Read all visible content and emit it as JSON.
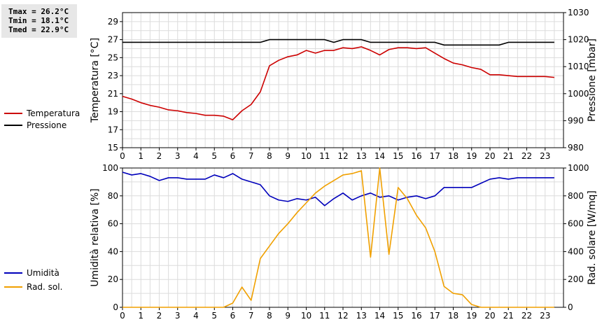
{
  "stats": {
    "tmax": "Tmax = 26.2°C",
    "tmin": "Tmin = 18.1°C",
    "tmed": "Tmed = 22.9°C"
  },
  "chart_data": [
    {
      "type": "line",
      "name": "temperature-pressure",
      "ylabel": "Temperatura [°C]",
      "y2label": "Pressione [mbar]",
      "xlim": [
        0,
        24
      ],
      "xticks": [
        0,
        1,
        2,
        3,
        4,
        5,
        6,
        7,
        8,
        9,
        10,
        11,
        12,
        13,
        14,
        15,
        16,
        17,
        18,
        19,
        20,
        21,
        22,
        23
      ],
      "ylim": [
        15,
        30
      ],
      "yticks": [
        15,
        17,
        19,
        21,
        23,
        25,
        27,
        29
      ],
      "y2lim": [
        980,
        1030
      ],
      "y2ticks": [
        980,
        990,
        1000,
        1010,
        1020,
        1030
      ],
      "grid": true,
      "series": [
        {
          "name": "Temperatura",
          "axis": "left",
          "color": "#cc0000",
          "x": [
            0,
            0.5,
            1,
            1.5,
            2,
            2.5,
            3,
            3.5,
            4,
            4.5,
            5,
            5.5,
            6,
            6.5,
            7,
            7.5,
            8,
            8.5,
            9,
            9.5,
            10,
            10.5,
            11,
            11.5,
            12,
            12.5,
            13,
            13.5,
            14,
            14.5,
            15,
            15.5,
            16,
            16.5,
            17,
            17.5,
            18,
            18.5,
            19,
            19.5,
            20,
            20.5,
            21,
            21.5,
            22,
            22.5,
            23,
            23.5
          ],
          "values": [
            20.7,
            20.4,
            20.0,
            19.7,
            19.5,
            19.2,
            19.1,
            18.9,
            18.8,
            18.6,
            18.6,
            18.5,
            18.1,
            19.1,
            19.8,
            21.2,
            24.1,
            24.7,
            25.1,
            25.3,
            25.8,
            25.5,
            25.8,
            25.8,
            26.1,
            26.0,
            26.2,
            25.8,
            25.3,
            25.9,
            26.1,
            26.1,
            26.0,
            26.1,
            25.5,
            24.9,
            24.4,
            24.2,
            23.9,
            23.7,
            23.1,
            23.1,
            23.0,
            22.9,
            22.9,
            22.9,
            22.9,
            22.8
          ]
        },
        {
          "name": "Pressione",
          "axis": "right",
          "color": "#000000",
          "x": [
            0,
            7.5,
            8,
            11,
            11.5,
            12,
            13,
            13.5,
            16.5,
            17,
            17.5,
            20.5,
            21,
            23.5
          ],
          "values": [
            1019,
            1019,
            1020,
            1020,
            1019,
            1020,
            1020,
            1019,
            1019,
            1019,
            1018,
            1018,
            1019,
            1019
          ]
        }
      ]
    },
    {
      "type": "line",
      "name": "humidity-radiation",
      "ylabel": "Umidità relativa [%]",
      "y2label": "Rad. solare [W/mq]",
      "xlim": [
        0,
        24
      ],
      "xticks": [
        0,
        1,
        2,
        3,
        4,
        5,
        6,
        7,
        8,
        9,
        10,
        11,
        12,
        13,
        14,
        15,
        16,
        17,
        18,
        19,
        20,
        21,
        22,
        23
      ],
      "ylim": [
        0,
        100
      ],
      "yticks": [
        0,
        20,
        40,
        60,
        80,
        100
      ],
      "y2lim": [
        0,
        1000
      ],
      "y2ticks": [
        0,
        200,
        400,
        600,
        800,
        1000
      ],
      "grid": true,
      "series": [
        {
          "name": "Umidità",
          "axis": "left",
          "color": "#0000bb",
          "x": [
            0,
            0.5,
            1,
            1.5,
            2,
            2.5,
            3,
            3.5,
            4,
            4.5,
            5,
            5.5,
            6,
            6.5,
            7,
            7.5,
            8,
            8.5,
            9,
            9.5,
            10,
            10.5,
            11,
            11.5,
            12,
            12.5,
            13,
            13.5,
            14,
            14.5,
            15,
            15.5,
            16,
            16.5,
            17,
            17.5,
            18,
            18.5,
            19,
            19.5,
            20,
            20.5,
            21,
            21.5,
            22,
            22.5,
            23,
            23.5
          ],
          "values": [
            97,
            95,
            96,
            94,
            91,
            93,
            93,
            92,
            92,
            92,
            95,
            93,
            96,
            92,
            90,
            88,
            80,
            77,
            76,
            78,
            77,
            79,
            73,
            78,
            82,
            77,
            80,
            82,
            79,
            80,
            77,
            79,
            80,
            78,
            80,
            86,
            86,
            86,
            86,
            89,
            92,
            93,
            92,
            93,
            93,
            93,
            93,
            93
          ]
        },
        {
          "name": "Rad. sol.",
          "axis": "right",
          "color": "#f0a000",
          "x": [
            0,
            0.5,
            1,
            1.5,
            2,
            2.5,
            3,
            3.5,
            4,
            4.5,
            5,
            5.5,
            6,
            6.5,
            7,
            7.5,
            8,
            8.5,
            9,
            9.5,
            10,
            10.5,
            11,
            11.5,
            12,
            12.5,
            13,
            13.5,
            14,
            14.5,
            15,
            15.5,
            16,
            16.5,
            17,
            17.5,
            18,
            18.5,
            19,
            19.5,
            20,
            20.5,
            21,
            21.5,
            22,
            22.5,
            23,
            23.5
          ],
          "values": [
            0,
            0,
            0,
            0,
            0,
            0,
            0,
            0,
            0,
            0,
            0,
            0,
            30,
            145,
            50,
            350,
            440,
            530,
            600,
            680,
            750,
            820,
            870,
            910,
            950,
            960,
            980,
            360,
            1000,
            380,
            860,
            780,
            660,
            570,
            400,
            150,
            100,
            90,
            20,
            0,
            0,
            0,
            0,
            0,
            0,
            0,
            0,
            0
          ]
        }
      ]
    }
  ]
}
